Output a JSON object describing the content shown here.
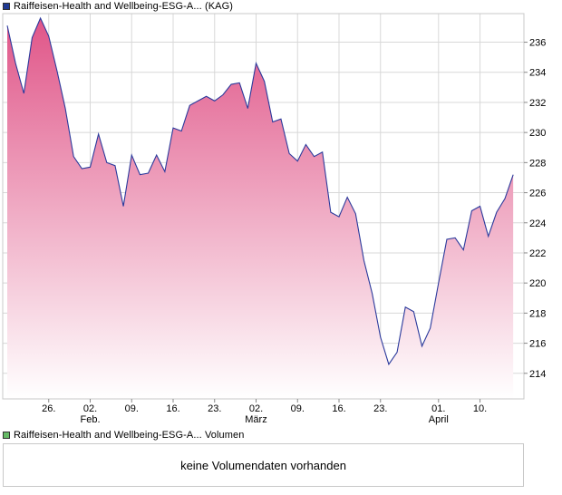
{
  "colors": {
    "price_swatch": "#1f3a93",
    "volume_swatch": "#66bb66",
    "line": "#2b3a9c",
    "fill_top": "#e05588",
    "fill_bottom": "#ffffff",
    "grid": "#d8d8d8",
    "frame": "#c8c8c8"
  },
  "legend": {
    "price_label": "Raiffeisen-Health and Wellbeing-ESG-A... (KAG)",
    "volume_label": "Raiffeisen-Health and Wellbeing-ESG-A... Volumen"
  },
  "volume_panel": {
    "message": "keine Volumendaten vorhanden"
  },
  "chart_data": {
    "type": "area",
    "title": "Raiffeisen-Health and Wellbeing-ESG-A... (KAG)",
    "xlabel": "",
    "ylabel": "",
    "ylim": [
      212.3,
      237.9
    ],
    "yticks": [
      214,
      216,
      218,
      220,
      222,
      224,
      226,
      228,
      230,
      232,
      234,
      236
    ],
    "x_ticks": [
      {
        "index": 5,
        "label": "26.",
        "month": ""
      },
      {
        "index": 10,
        "label": "02.",
        "month": "Feb."
      },
      {
        "index": 15,
        "label": "09.",
        "month": ""
      },
      {
        "index": 20,
        "label": "16.",
        "month": ""
      },
      {
        "index": 25,
        "label": "23.",
        "month": ""
      },
      {
        "index": 30,
        "label": "02.",
        "month": "März"
      },
      {
        "index": 35,
        "label": "09.",
        "month": ""
      },
      {
        "index": 40,
        "label": "16.",
        "month": ""
      },
      {
        "index": 45,
        "label": "23.",
        "month": ""
      },
      {
        "index": 52,
        "label": "01.",
        "month": "April"
      },
      {
        "index": 57,
        "label": "10.",
        "month": ""
      }
    ],
    "series": [
      {
        "name": "Raiffeisen-Health and Wellbeing-ESG-A... (KAG)",
        "values": [
          237.1,
          234.6,
          232.6,
          236.3,
          237.6,
          236.4,
          234.1,
          231.6,
          228.4,
          227.6,
          227.7,
          229.9,
          228.0,
          227.8,
          225.1,
          228.5,
          227.2,
          227.3,
          228.5,
          227.4,
          230.3,
          230.1,
          231.8,
          232.1,
          232.4,
          232.1,
          232.5,
          233.2,
          233.3,
          231.6,
          234.6,
          233.4,
          230.7,
          230.9,
          228.6,
          228.1,
          229.2,
          228.4,
          228.7,
          224.7,
          224.4,
          225.7,
          224.6,
          221.5,
          219.3,
          216.4,
          214.6,
          215.4,
          218.4,
          218.1,
          215.8,
          217.0,
          220.0,
          222.9,
          223.0,
          222.2,
          224.8,
          225.1,
          223.1,
          224.7,
          225.6,
          227.2
        ]
      }
    ]
  }
}
